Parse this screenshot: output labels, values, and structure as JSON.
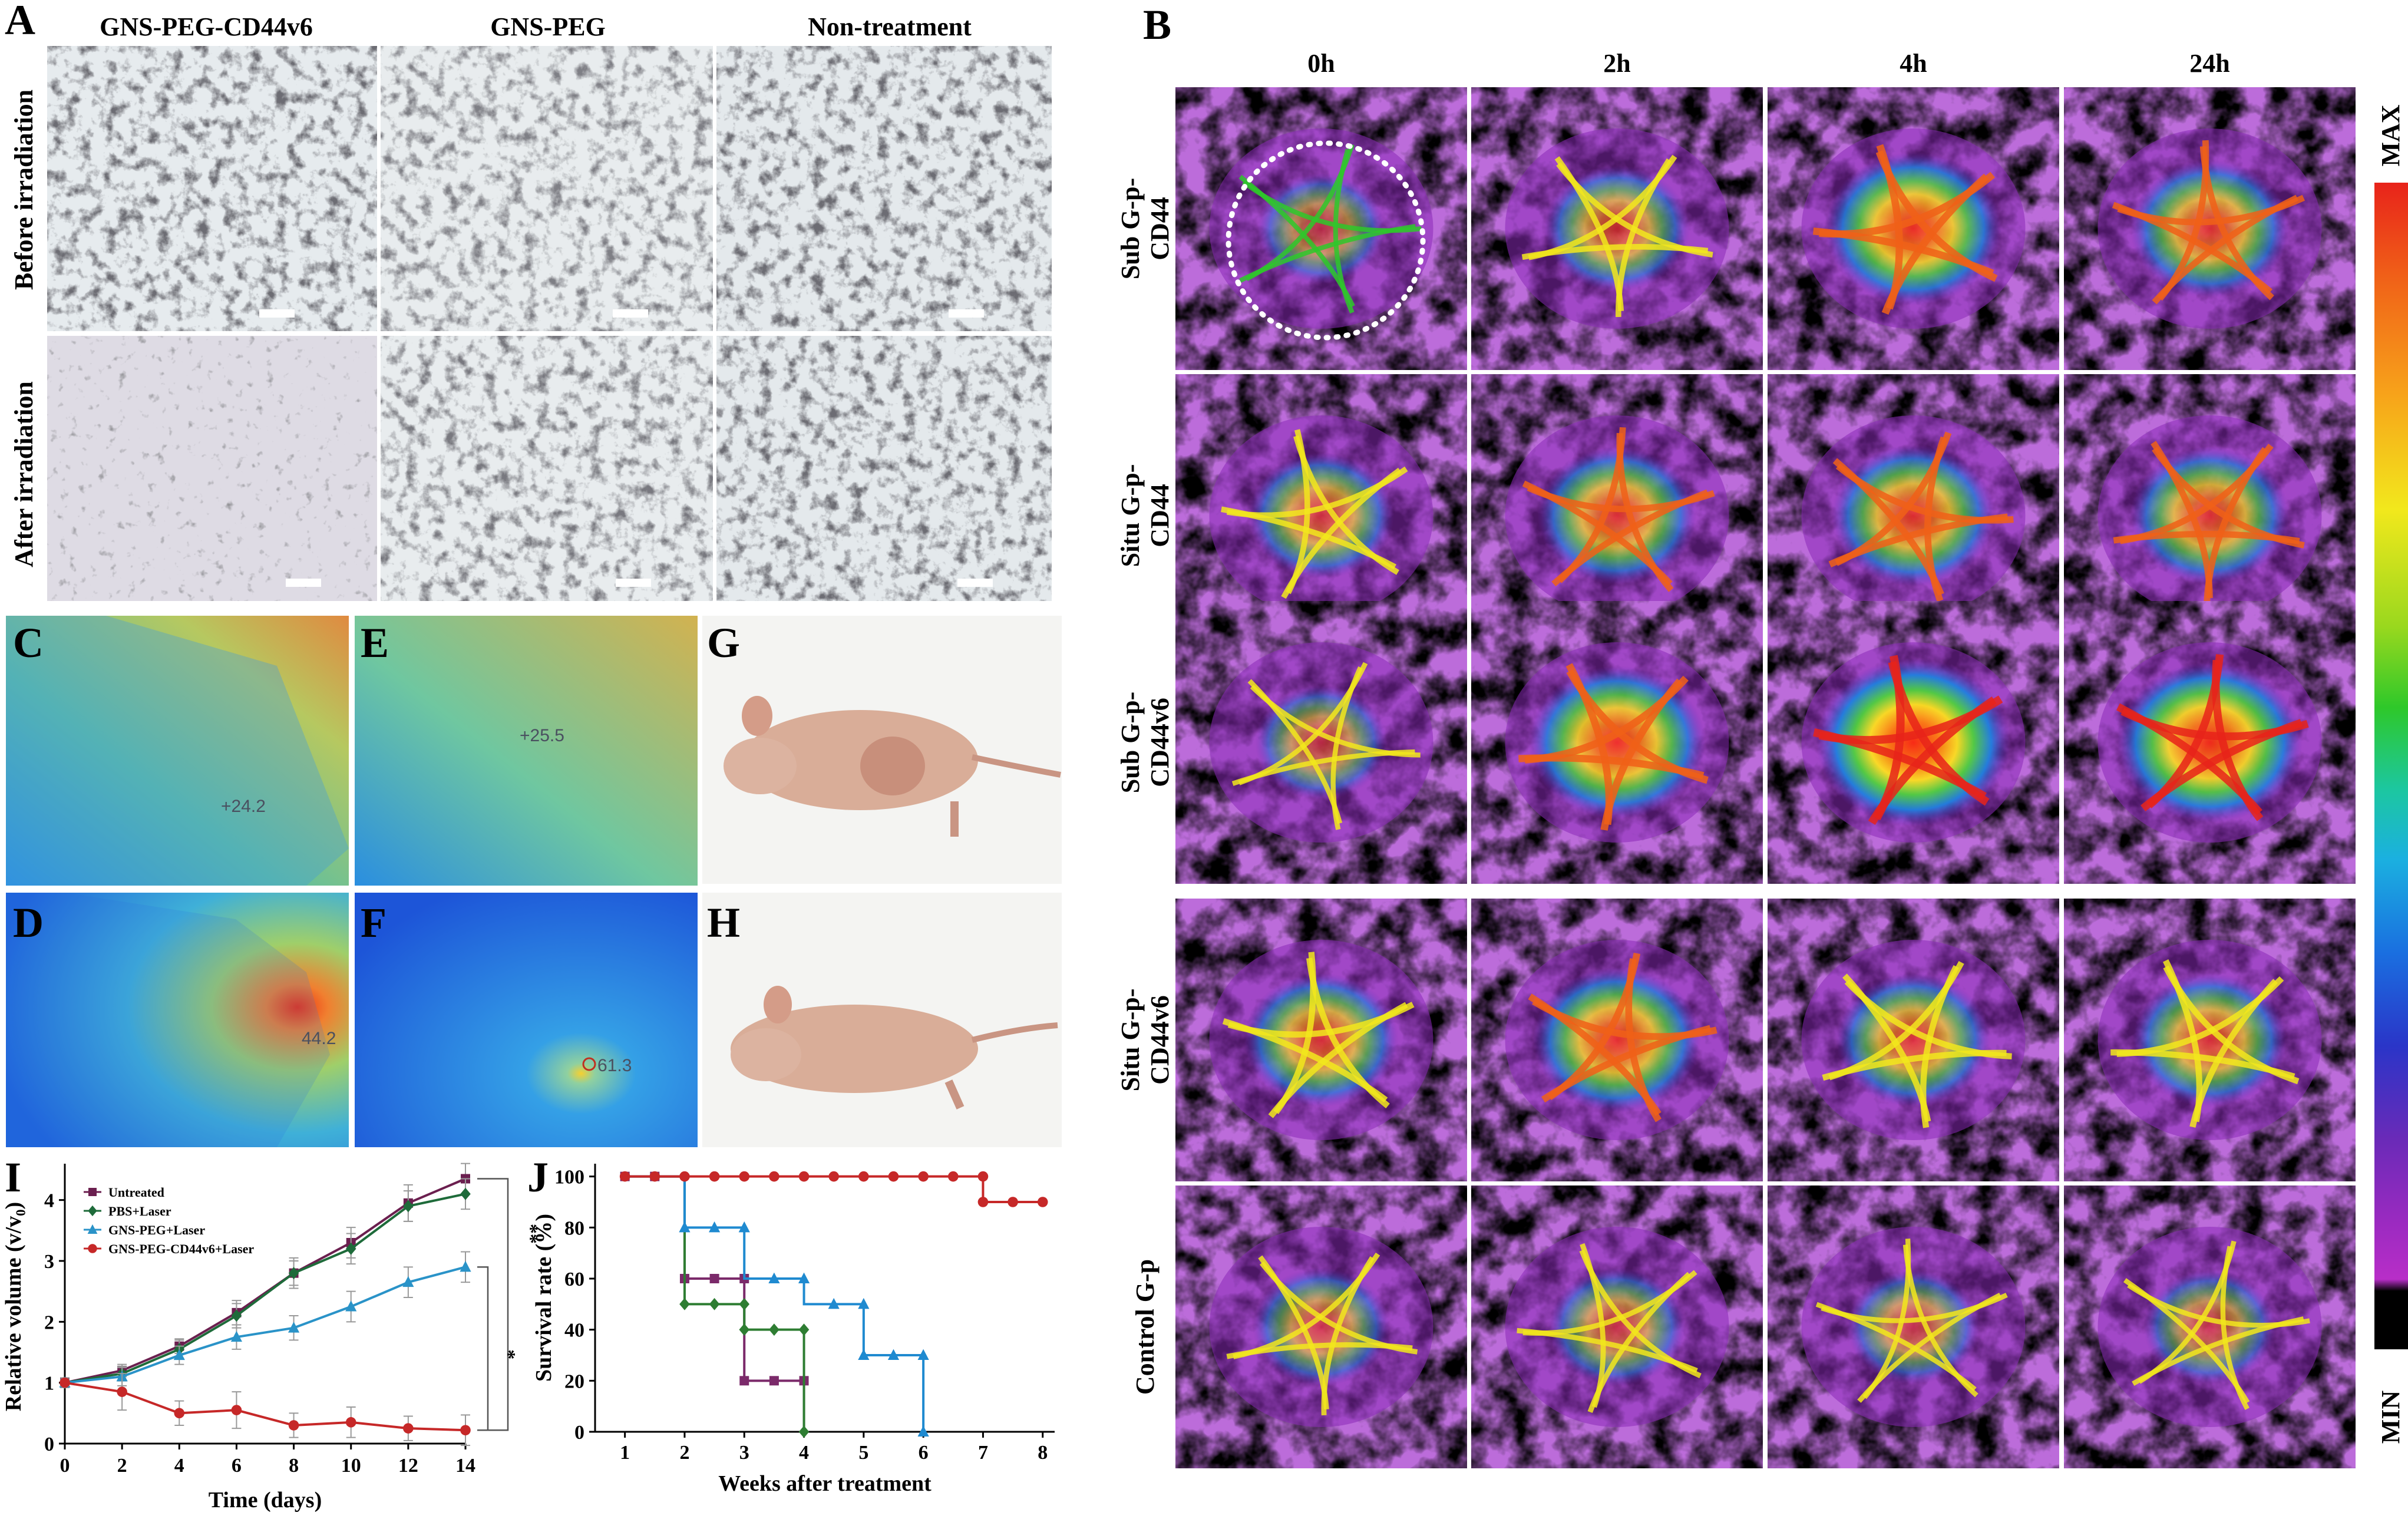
{
  "panelA": {
    "letter": "A",
    "columns": [
      "GNS-PEG-CD44v6",
      "GNS-PEG",
      "Non-treatment"
    ],
    "rows": [
      "Before irradiation",
      "After irradiation"
    ]
  },
  "panelB": {
    "letter": "B",
    "timepoints": [
      "0h",
      "2h",
      "4h",
      "24h"
    ],
    "rows": [
      [
        "Sub G-p-",
        "CD44"
      ],
      [
        "Situ G-p-",
        "CD44"
      ],
      [
        "Sub G-p-",
        "CD44v6"
      ],
      [
        "Situ G-p-",
        "CD44v6"
      ],
      [
        "Control G-p"
      ]
    ],
    "colorbar": {
      "max_label": "MAX",
      "min_label": "MIN",
      "colors": [
        "#e8231a",
        "#f06018",
        "#f7a21a",
        "#f2e81c",
        "#9ad81e",
        "#2ec82a",
        "#1cc7a0",
        "#1bb0e0",
        "#1a6fe0",
        "#2a35c8",
        "#6a2ab8",
        "#9a2ac0",
        "#b82ec8",
        "#000000"
      ]
    }
  },
  "thermal": {
    "C": {
      "letter": "C",
      "reading": "+24.2"
    },
    "D": {
      "letter": "D",
      "reading": "44.2"
    },
    "E": {
      "letter": "E",
      "reading": "+25.5"
    },
    "F": {
      "letter": "F",
      "reading": "61.3"
    }
  },
  "photos": {
    "G": {
      "letter": "G"
    },
    "H": {
      "letter": "H"
    }
  },
  "chart_data": [
    {
      "panel": "I",
      "type": "line",
      "xlabel": "Time (days)",
      "ylabel": "Relative volume (v/v₀)",
      "x": [
        0,
        2,
        4,
        6,
        8,
        10,
        12,
        14
      ],
      "xlim": [
        0,
        14
      ],
      "ylim": [
        0,
        4.5
      ],
      "xticks": [
        "0",
        "2",
        "4",
        "6",
        "8",
        "10",
        "12",
        "14"
      ],
      "yticks": [
        "0",
        "1",
        "2",
        "3",
        "4"
      ],
      "series": [
        {
          "name": "Untreated",
          "color": "#6b1f4f",
          "marker": "square",
          "values": [
            1.0,
            1.2,
            1.6,
            2.15,
            2.8,
            3.3,
            3.95,
            4.35
          ],
          "errors": [
            0.08,
            0.1,
            0.12,
            0.2,
            0.25,
            0.25,
            0.3,
            0.25
          ]
        },
        {
          "name": "PBS+Laser",
          "color": "#1e6b3a",
          "marker": "diamond",
          "values": [
            1.0,
            1.15,
            1.55,
            2.1,
            2.8,
            3.2,
            3.9,
            4.1
          ],
          "errors": [
            0.08,
            0.12,
            0.15,
            0.2,
            0.2,
            0.25,
            0.25,
            0.25
          ]
        },
        {
          "name": "GNS-PEG+Laser",
          "color": "#2a93c8",
          "marker": "triangle",
          "values": [
            1.0,
            1.1,
            1.45,
            1.75,
            1.9,
            2.25,
            2.65,
            2.9
          ],
          "errors": [
            0.08,
            0.15,
            0.15,
            0.2,
            0.2,
            0.25,
            0.25,
            0.25
          ]
        },
        {
          "name": "GNS-PEG-CD44v6+Laser",
          "color": "#c62828",
          "marker": "circle",
          "values": [
            1.0,
            0.85,
            0.5,
            0.55,
            0.3,
            0.35,
            0.25,
            0.22
          ],
          "errors": [
            0.05,
            0.3,
            0.2,
            0.3,
            0.2,
            0.25,
            0.2,
            0.25
          ]
        }
      ],
      "significance": [
        "**",
        "*"
      ]
    },
    {
      "panel": "J",
      "type": "line",
      "xlabel": "Weeks after treatment",
      "ylabel": "Survival rate (%)",
      "xlim": [
        0.5,
        8.2
      ],
      "ylim": [
        0,
        105
      ],
      "xticks": [
        "1",
        "2",
        "3",
        "4",
        "5",
        "6",
        "7",
        "8"
      ],
      "yticks": [
        "0",
        "20",
        "40",
        "60",
        "80",
        "100"
      ],
      "series": [
        {
          "name": "Untreated",
          "color": "#7b2a6a",
          "marker": "square",
          "steps": [
            [
              1,
              100
            ],
            [
              2,
              100
            ],
            [
              2,
              60
            ],
            [
              3,
              60
            ],
            [
              3,
              20
            ],
            [
              4,
              20
            ],
            [
              4,
              0
            ]
          ],
          "markers": [
            [
              1,
              100
            ],
            [
              1.5,
              100
            ],
            [
              2,
              60
            ],
            [
              2.5,
              60
            ],
            [
              3,
              60
            ],
            [
              3,
              20
            ],
            [
              3.5,
              20
            ],
            [
              4,
              20
            ]
          ]
        },
        {
          "name": "PBS+Laser",
          "color": "#2e7d32",
          "marker": "diamond",
          "steps": [
            [
              1,
              100
            ],
            [
              2,
              100
            ],
            [
              2,
              50
            ],
            [
              3,
              50
            ],
            [
              3,
              40
            ],
            [
              4,
              40
            ],
            [
              4,
              0
            ]
          ],
          "markers": [
            [
              2,
              50
            ],
            [
              2.5,
              50
            ],
            [
              3,
              50
            ],
            [
              3,
              40
            ],
            [
              3.5,
              40
            ],
            [
              4,
              40
            ],
            [
              4,
              0
            ]
          ]
        },
        {
          "name": "GNS-PEG+Laser",
          "color": "#1f8ad0",
          "marker": "triangle",
          "steps": [
            [
              1,
              100
            ],
            [
              2,
              100
            ],
            [
              2,
              80
            ],
            [
              3,
              80
            ],
            [
              3,
              60
            ],
            [
              4,
              60
            ],
            [
              4,
              50
            ],
            [
              5,
              50
            ],
            [
              5,
              30
            ],
            [
              6,
              30
            ],
            [
              6,
              0
            ]
          ],
          "markers": [
            [
              2,
              80
            ],
            [
              2.5,
              80
            ],
            [
              3,
              80
            ],
            [
              3.5,
              60
            ],
            [
              4,
              60
            ],
            [
              4.5,
              50
            ],
            [
              5,
              50
            ],
            [
              5,
              30
            ],
            [
              5.5,
              30
            ],
            [
              6,
              30
            ],
            [
              6,
              0
            ]
          ]
        },
        {
          "name": "GNS-PEG-CD44v6+Laser",
          "color": "#c62828",
          "marker": "circle",
          "steps": [
            [
              1,
              100
            ],
            [
              7,
              100
            ],
            [
              7,
              90
            ],
            [
              8,
              90
            ]
          ],
          "markers": [
            [
              1,
              100
            ],
            [
              1.5,
              100
            ],
            [
              2,
              100
            ],
            [
              2.5,
              100
            ],
            [
              3,
              100
            ],
            [
              3.5,
              100
            ],
            [
              4,
              100
            ],
            [
              4.5,
              100
            ],
            [
              5,
              100
            ],
            [
              5.5,
              100
            ],
            [
              6,
              100
            ],
            [
              6.5,
              100
            ],
            [
              7,
              100
            ],
            [
              7,
              90
            ],
            [
              7.5,
              90
            ],
            [
              8,
              90
            ]
          ]
        }
      ]
    }
  ]
}
